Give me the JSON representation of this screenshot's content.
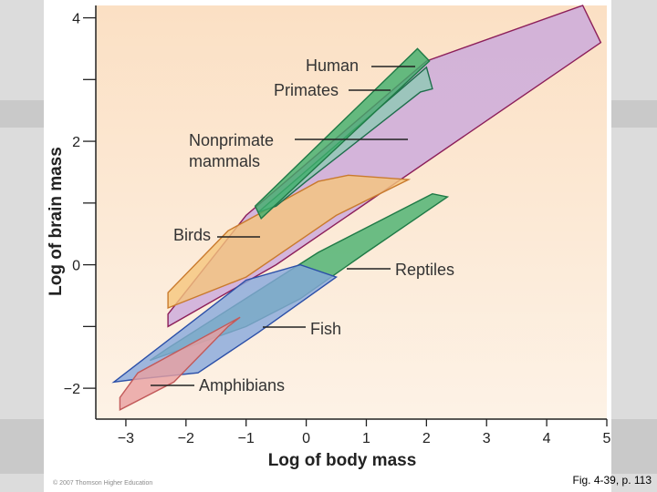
{
  "chart_data": {
    "type": "area",
    "title": "",
    "xlabel": "Log of body mass",
    "ylabel": "Log of brain mass",
    "xlim": [
      -3.5,
      5
    ],
    "ylim": [
      -2.5,
      4.2
    ],
    "x_ticks": [
      -3,
      -2,
      -1,
      0,
      1,
      2,
      3,
      4,
      5
    ],
    "x_tick_labels": [
      "−3",
      "−2",
      "−1",
      "0",
      "1",
      "2",
      "3",
      "4",
      "5"
    ],
    "y_ticks": [
      -2,
      -1,
      0,
      1,
      2,
      3,
      4
    ],
    "y_tick_labels": [
      "−2",
      "",
      "0",
      "",
      "2",
      "",
      "4"
    ],
    "grid": false,
    "series": [
      {
        "name": "Nonprimate mammals",
        "fill": "#c9a8dc",
        "stroke": "#8c1f5a",
        "points": [
          [
            -2.3,
            -1.0
          ],
          [
            -2.3,
            -0.8
          ],
          [
            -1.0,
            0.8
          ],
          [
            2.0,
            3.3
          ],
          [
            4.6,
            4.2
          ],
          [
            4.9,
            3.6
          ],
          [
            -0.5,
            0.0
          ]
        ]
      },
      {
        "name": "Birds",
        "fill": "#f5c57c",
        "stroke": "#c97a2d",
        "points": [
          [
            -2.3,
            -0.7
          ],
          [
            -2.3,
            -0.45
          ],
          [
            -1.3,
            0.55
          ],
          [
            0.2,
            1.35
          ],
          [
            0.7,
            1.45
          ],
          [
            1.7,
            1.38
          ],
          [
            0.5,
            0.8
          ],
          [
            -1.0,
            -0.2
          ]
        ]
      },
      {
        "name": "Primates",
        "fill": "#8ec9b4",
        "stroke": "#1f6e4c",
        "points": [
          [
            -0.8,
            0.85
          ],
          [
            2.0,
            3.2
          ],
          [
            2.1,
            2.85
          ],
          [
            1.9,
            2.8
          ],
          [
            0.0,
            1.35
          ],
          [
            -0.5,
            0.95
          ]
        ]
      },
      {
        "name": "Human",
        "fill": "#3fae6a",
        "stroke": "#1f7a46",
        "points": [
          [
            -0.85,
            0.95
          ],
          [
            1.85,
            3.5
          ],
          [
            2.05,
            3.3
          ],
          [
            -0.75,
            0.75
          ]
        ]
      },
      {
        "name": "Reptiles",
        "fill": "#46b06e",
        "stroke": "#1f7a46",
        "points": [
          [
            -2.6,
            -1.55
          ],
          [
            -2.3,
            -1.35
          ],
          [
            0.2,
            0.2
          ],
          [
            2.1,
            1.15
          ],
          [
            2.35,
            1.1
          ],
          [
            1.0,
            0.2
          ],
          [
            -0.1,
            -0.55
          ],
          [
            -1.0,
            -1.0
          ]
        ]
      },
      {
        "name": "Fish",
        "fill": "#86a8dc",
        "stroke": "#2b4fa8",
        "points": [
          [
            -3.2,
            -1.9
          ],
          [
            -1.0,
            -0.25
          ],
          [
            -0.1,
            0.0
          ],
          [
            0.5,
            -0.2
          ],
          [
            -0.8,
            -1.1
          ],
          [
            -1.8,
            -1.75
          ],
          [
            -2.8,
            -1.85
          ]
        ]
      },
      {
        "name": "Amphibians",
        "fill": "#e8a0a0",
        "stroke": "#c25a5a",
        "points": [
          [
            -3.1,
            -2.35
          ],
          [
            -3.1,
            -2.15
          ],
          [
            -2.8,
            -1.75
          ],
          [
            -1.1,
            -0.85
          ],
          [
            -1.3,
            -1.0
          ],
          [
            -2.2,
            -1.9
          ]
        ]
      }
    ],
    "annotations": [
      {
        "label": "Human",
        "lines": [
          "Human"
        ],
        "target": [
          1.85,
          3.35
        ]
      },
      {
        "label": "Primates",
        "lines": [
          "Primates"
        ],
        "target": [
          1.4,
          2.95
        ]
      },
      {
        "label": "Nonprimate mammals",
        "lines": [
          "Nonprimate",
          "mammals"
        ],
        "target": [
          1.7,
          2.15
        ]
      },
      {
        "label": "Birds",
        "lines": [
          "Birds"
        ],
        "target": [
          -0.75,
          0.55
        ]
      },
      {
        "label": "Reptiles",
        "lines": [
          "Reptiles"
        ],
        "target": [
          0.7,
          0.0
        ]
      },
      {
        "label": "Fish",
        "lines": [
          "Fish"
        ],
        "target": [
          -0.7,
          -0.95
        ]
      },
      {
        "label": "Amphibians",
        "lines": [
          "Amphibians"
        ],
        "target": [
          -2.6,
          -1.95
        ]
      }
    ]
  },
  "caption": "Fig. 4-39, p. 113",
  "copyright": "© 2007 Thomson Higher Education",
  "colors": {
    "plot_top": "#fbe0c4",
    "plot_bottom": "#fdf2e6",
    "axis": "#222222",
    "label": "#333333"
  }
}
